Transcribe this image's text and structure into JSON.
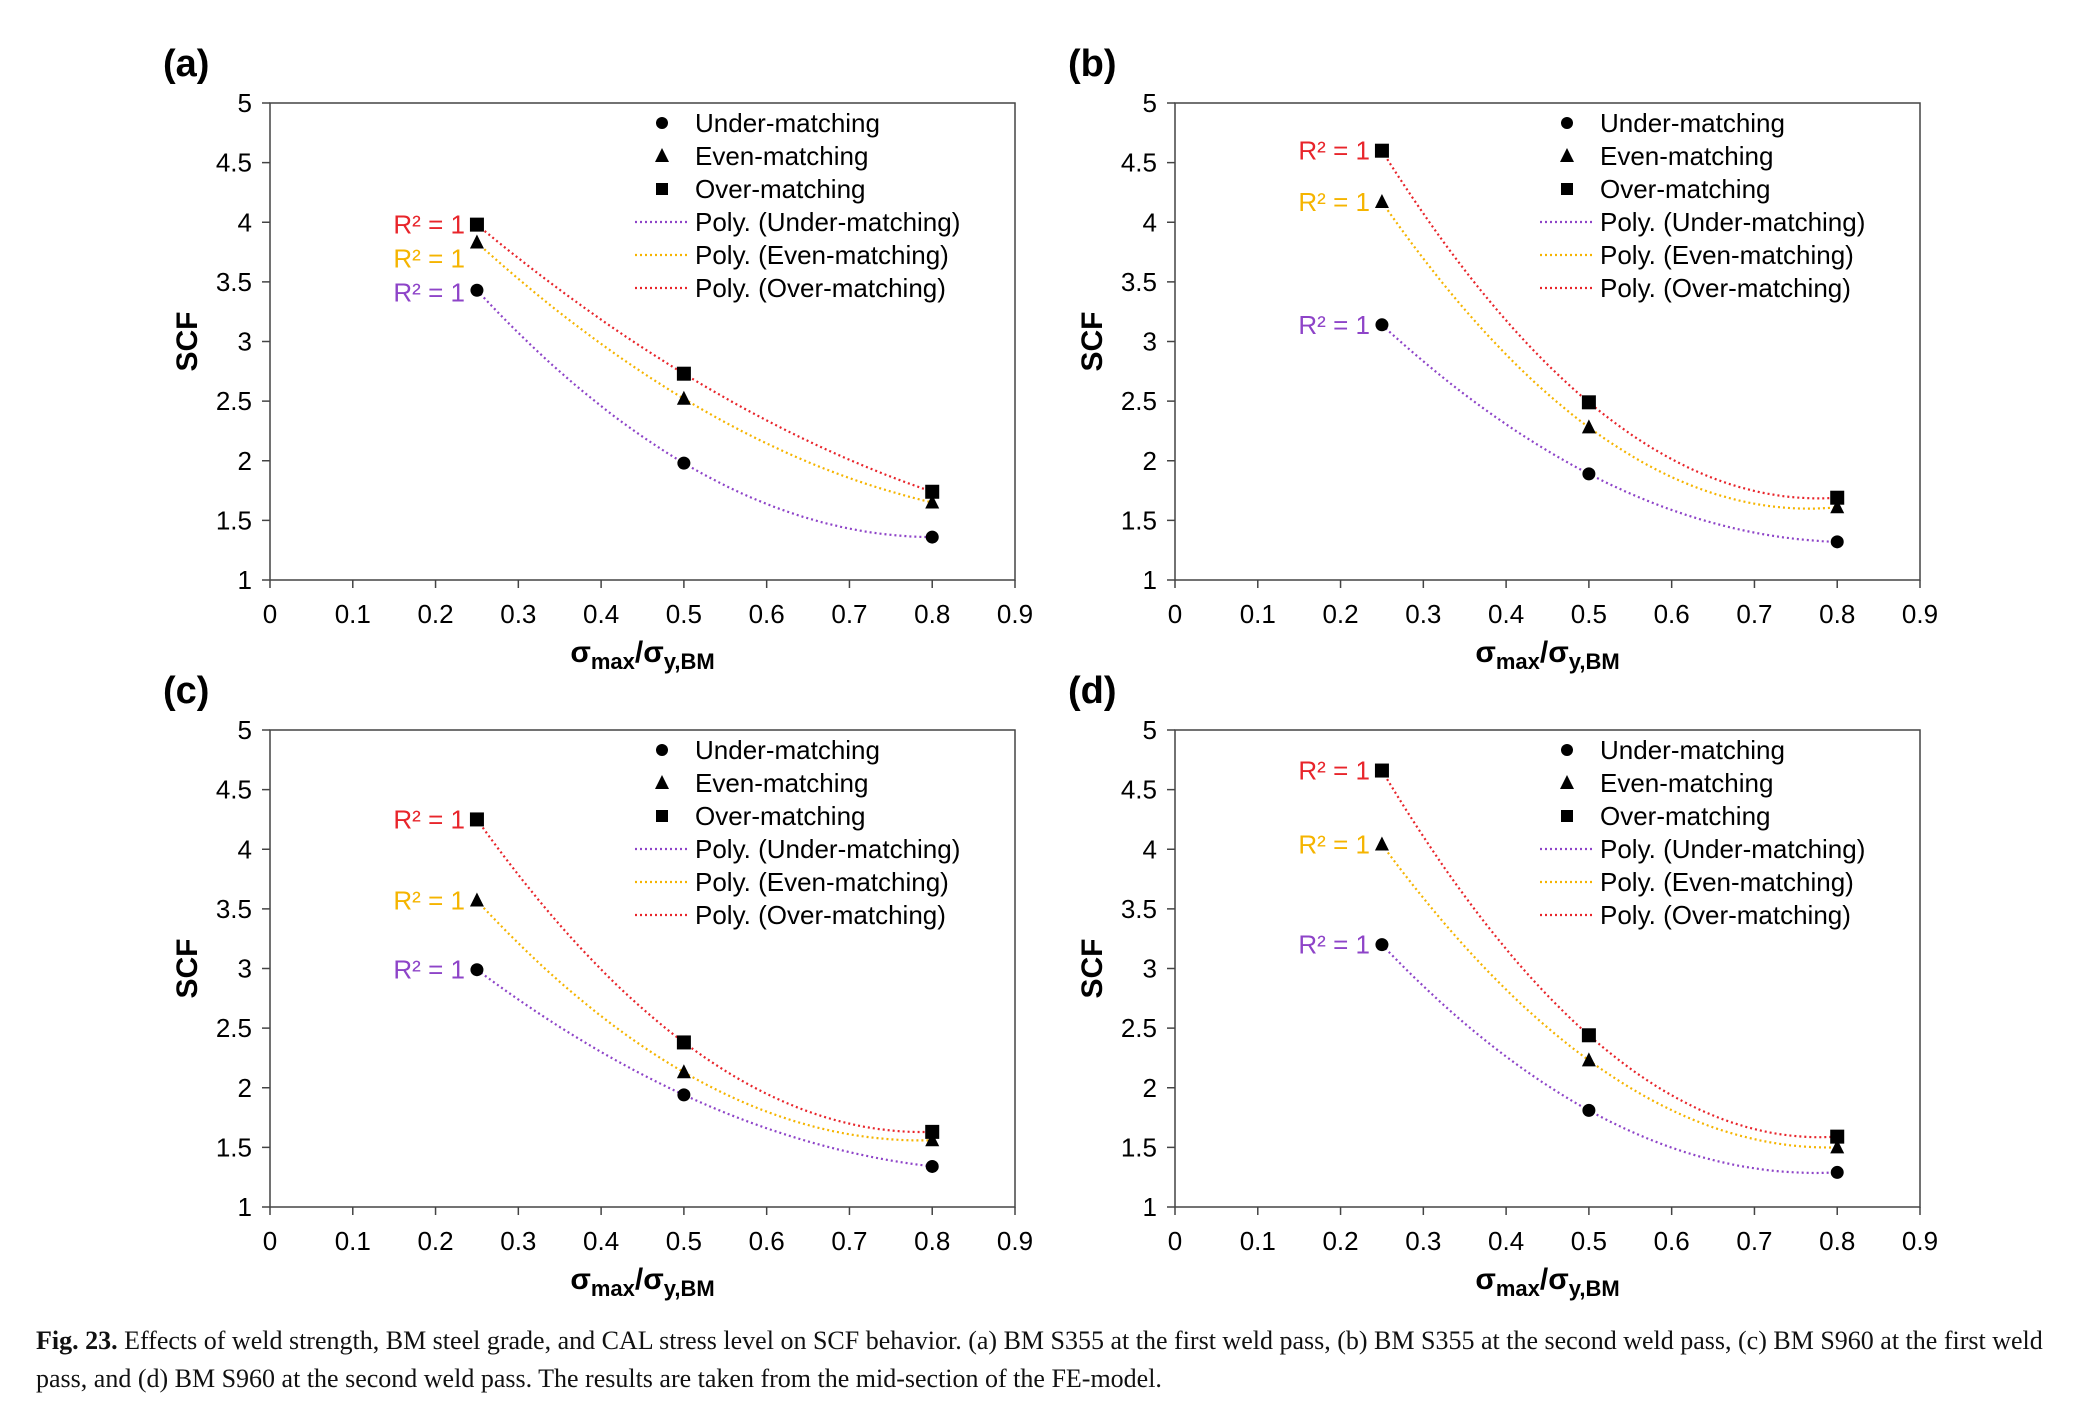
{
  "colors": {
    "under": "#8e44c8",
    "even": "#f5b400",
    "over": "#e8252b",
    "marker": "#000000"
  },
  "common": {
    "xlabel_main": "σ",
    "xlabel_sub1": "max",
    "xlabel_slash": "/σ",
    "xlabel_sub2": "y,BM",
    "ylabel": "SCF",
    "xlim": [
      0,
      0.9
    ],
    "ylim": [
      1,
      5
    ],
    "xticks": [
      "0",
      "0.1",
      "0.2",
      "0.3",
      "0.4",
      "0.5",
      "0.6",
      "0.7",
      "0.8",
      "0.9"
    ],
    "yticks": [
      "1",
      "1.5",
      "2",
      "2.5",
      "3",
      "3.5",
      "4",
      "4.5",
      "5"
    ],
    "legend": [
      "Under-matching",
      "Even-matching",
      "Over-matching",
      "Poly. (Under-matching)",
      "Poly. (Even-matching)",
      "Poly. (Over-matching)"
    ],
    "r2_label": "R² = 1"
  },
  "chart_data": [
    {
      "type": "scatter",
      "panel": "(a)",
      "x": [
        0.25,
        0.5,
        0.8
      ],
      "series": [
        {
          "name": "Under-matching",
          "marker": "circle",
          "values": [
            3.43,
            1.98,
            1.36
          ]
        },
        {
          "name": "Even-matching",
          "marker": "triangle",
          "values": [
            3.83,
            2.52,
            1.65
          ]
        },
        {
          "name": "Over-matching",
          "marker": "square",
          "values": [
            3.98,
            2.73,
            1.74
          ]
        }
      ]
    },
    {
      "type": "scatter",
      "panel": "(b)",
      "x": [
        0.25,
        0.5,
        0.8
      ],
      "series": [
        {
          "name": "Under-matching",
          "marker": "circle",
          "values": [
            3.14,
            1.89,
            1.32
          ]
        },
        {
          "name": "Even-matching",
          "marker": "triangle",
          "values": [
            4.17,
            2.28,
            1.61
          ]
        },
        {
          "name": "Over-matching",
          "marker": "square",
          "values": [
            4.6,
            2.49,
            1.69
          ]
        }
      ]
    },
    {
      "type": "scatter",
      "panel": "(c)",
      "x": [
        0.25,
        0.5,
        0.8
      ],
      "series": [
        {
          "name": "Under-matching",
          "marker": "circle",
          "values": [
            2.99,
            1.94,
            1.34
          ]
        },
        {
          "name": "Even-matching",
          "marker": "triangle",
          "values": [
            3.57,
            2.13,
            1.56
          ]
        },
        {
          "name": "Over-matching",
          "marker": "square",
          "values": [
            4.25,
            2.38,
            1.63
          ]
        }
      ]
    },
    {
      "type": "scatter",
      "panel": "(d)",
      "x": [
        0.25,
        0.5,
        0.8
      ],
      "series": [
        {
          "name": "Under-matching",
          "marker": "circle",
          "values": [
            3.2,
            1.81,
            1.29
          ]
        },
        {
          "name": "Even-matching",
          "marker": "triangle",
          "values": [
            4.04,
            2.23,
            1.5
          ]
        },
        {
          "name": "Over-matching",
          "marker": "square",
          "values": [
            4.66,
            2.44,
            1.59
          ]
        }
      ]
    }
  ],
  "caption": {
    "label": "Fig. 23.",
    "text": "Effects of weld strength, BM steel grade, and CAL stress level on SCF behavior. (a) BM S355 at the first weld pass, (b) BM S355 at the second weld pass, (c) BM S960 at the first weld pass, and (d) BM S960 at the second weld pass. The results are taken from the mid-section of the FE-model."
  }
}
